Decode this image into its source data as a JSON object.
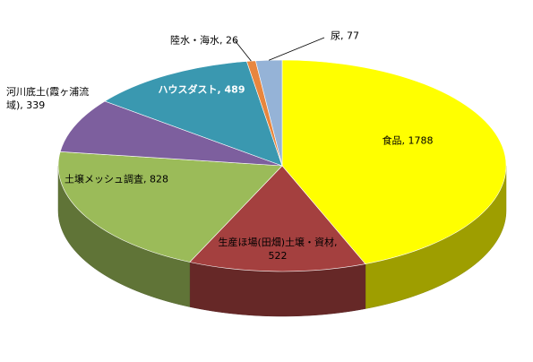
{
  "chart_data": {
    "type": "pie3d",
    "values": [
      1788,
      522,
      828,
      339,
      489,
      26,
      77
    ],
    "value_labels": [
      "食品, 1788",
      "生産ほ場(田畑)土壌・資材, 522",
      "土壌メッシュ調査, 828",
      "河川底土(霞ヶ浦流域), 339",
      "ハウスダスト, 489",
      "陸水・海水, 26",
      "尿, 77"
    ],
    "colors": [
      "#ffff00",
      "#a4403f",
      "#9bbb59",
      "#7d5f9e",
      "#3a98b0",
      "#e8863e",
      "#95b3d7"
    ]
  }
}
